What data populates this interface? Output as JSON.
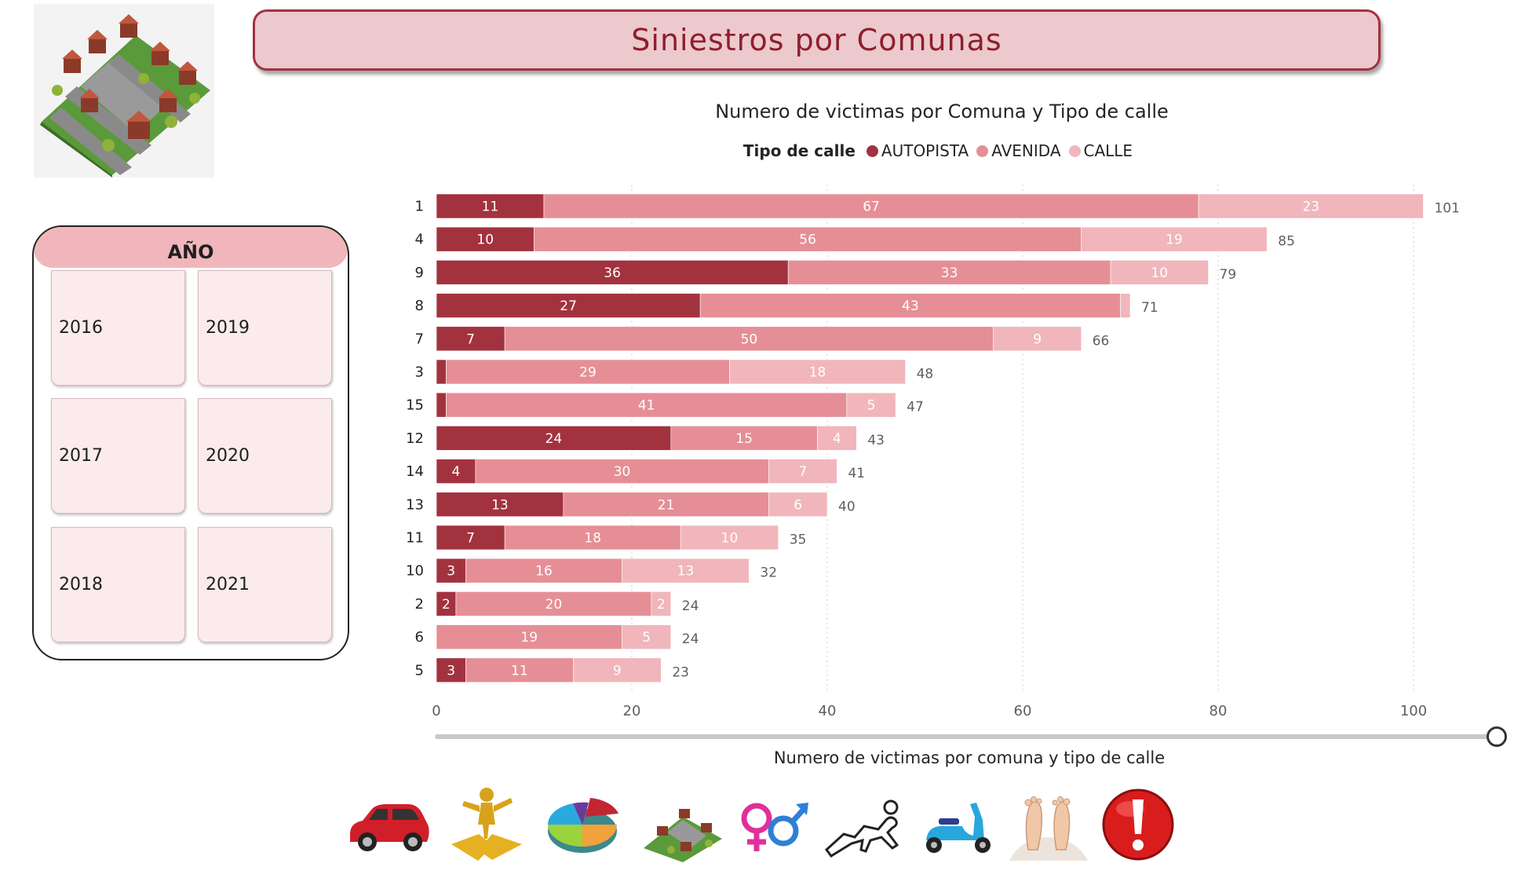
{
  "header": {
    "title": "Siniestros por Comunas"
  },
  "slicer": {
    "title": "AÑO",
    "years": [
      "2016",
      "2019",
      "2017",
      "2020",
      "2018",
      "2021"
    ]
  },
  "chart_data": {
    "type": "bar",
    "orientation": "horizontal",
    "stacked": true,
    "title": "Numero de victimas por Comuna y Tipo de calle",
    "caption": "Numero de victimas por comuna y tipo de calle",
    "legend_title": "Tipo de calle",
    "legend_position": "top",
    "categories": [
      "1",
      "4",
      "9",
      "8",
      "7",
      "3",
      "15",
      "12",
      "14",
      "13",
      "11",
      "10",
      "2",
      "6",
      "5"
    ],
    "series": [
      {
        "name": "AUTOPISTA",
        "color": "#a3323f",
        "values": [
          11,
          10,
          36,
          27,
          7,
          1,
          1,
          24,
          4,
          13,
          7,
          3,
          2,
          0,
          3
        ]
      },
      {
        "name": "AVENIDA",
        "color": "#e68e96",
        "values": [
          67,
          56,
          33,
          43,
          50,
          29,
          41,
          15,
          30,
          21,
          18,
          16,
          20,
          19,
          11
        ]
      },
      {
        "name": "CALLE",
        "color": "#f0b6bb",
        "values": [
          23,
          19,
          10,
          1,
          9,
          18,
          5,
          4,
          7,
          6,
          10,
          13,
          2,
          5,
          9
        ]
      }
    ],
    "totals": [
      101,
      85,
      79,
      71,
      66,
      48,
      47,
      43,
      41,
      40,
      35,
      32,
      24,
      24,
      23
    ],
    "xlim": [
      0,
      110
    ],
    "xticks": [
      0,
      20,
      40,
      60,
      80,
      100
    ],
    "grid": true
  },
  "nav_icons": [
    "car-icon",
    "puzzle-person-icon",
    "pie-chart-icon",
    "city-map-icon",
    "gender-icon",
    "chalk-outline-icon",
    "scooter-icon",
    "feet-icon",
    "alert-icon"
  ]
}
